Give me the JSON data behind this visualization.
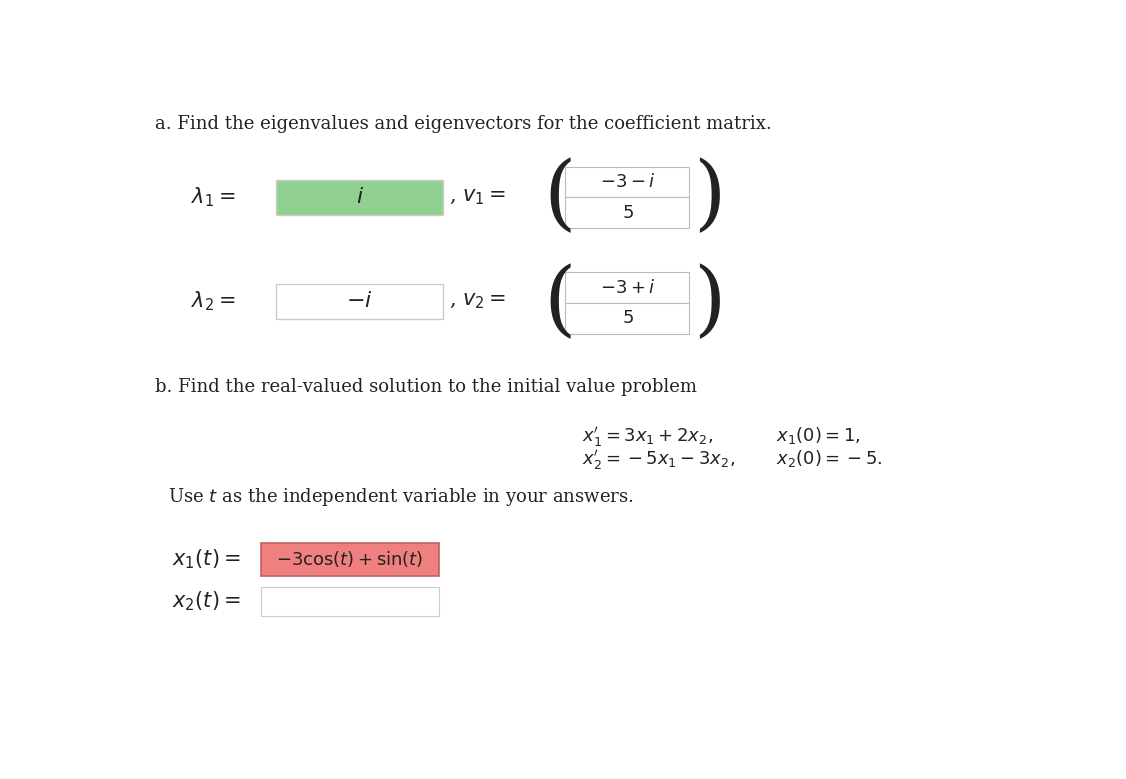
{
  "title_a": "a. Find the eigenvalues and eigenvectors for the coefficient matrix.",
  "title_b": "b. Find the real-valued solution to the initial value problem",
  "use_t_text": "Use $t$ as the independent variable in your answers.",
  "lambda1_label": "$\\lambda_1 =$",
  "lambda1_value": "$i$",
  "lambda1_bg": "#90d190",
  "v1_label": ", $v_1 =$",
  "v1_top": "$-3 - i$",
  "v1_bottom": "$5$",
  "lambda2_label": "$\\lambda_2 =$",
  "lambda2_value": "$-i$",
  "lambda2_bg": "#ffffff",
  "v2_label": ", $v_2 =$",
  "v2_top": "$-3 + i$",
  "v2_bottom": "$5$",
  "system_line1": "$x_1' = 3x_1 + 2x_2,$",
  "system_line2": "$x_2' = -5x_1 - 3x_2,$",
  "ic_line1": "$x_1(0) = 1,$",
  "ic_line2": "$x_2(0) = -5.$",
  "x1_label": "$x_1(t) =$",
  "x1_value": "$-3\\cos(t) + \\sin(t)$",
  "x1_bg": "#f08080",
  "x2_label": "$x_2(t) =$",
  "x2_bg": "#ffffff",
  "box_border": "#cccccc",
  "text_color": "#222222",
  "bg_color": "#ffffff"
}
